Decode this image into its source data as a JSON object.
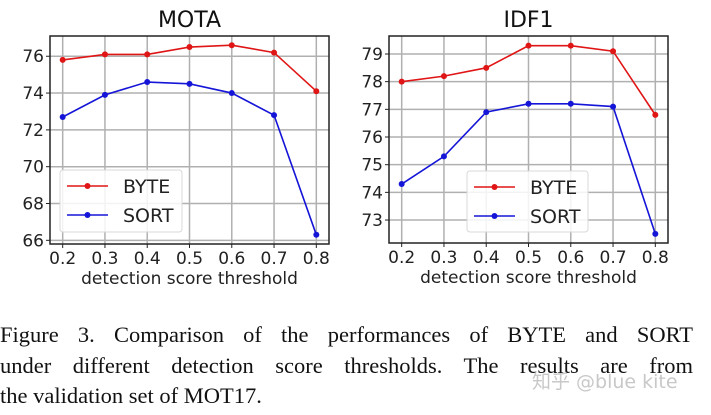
{
  "chart_data": [
    {
      "type": "line",
      "title": "MOTA",
      "xlabel": "detection score threshold",
      "ylabel": "",
      "x": [
        0.2,
        0.3,
        0.4,
        0.5,
        0.6,
        0.7,
        0.8
      ],
      "xticks": [
        "0.2",
        "0.3",
        "0.4",
        "0.5",
        "0.6",
        "0.7",
        "0.8"
      ],
      "yticks": [
        "66",
        "68",
        "70",
        "72",
        "74",
        "76"
      ],
      "ylim": [
        65.8,
        77.1
      ],
      "xlim": [
        0.17,
        0.83
      ],
      "grid": true,
      "legend": "lower-left",
      "series": [
        {
          "name": "BYTE",
          "color": "#e01515",
          "values": [
            75.8,
            76.1,
            76.1,
            76.5,
            76.6,
            76.2,
            74.1
          ]
        },
        {
          "name": "SORT",
          "color": "#1515d8",
          "values": [
            72.7,
            73.9,
            74.6,
            74.5,
            74.0,
            72.8,
            66.3
          ]
        }
      ]
    },
    {
      "type": "line",
      "title": "IDF1",
      "xlabel": "detection score threshold",
      "ylabel": "",
      "x": [
        0.2,
        0.3,
        0.4,
        0.5,
        0.6,
        0.7,
        0.8
      ],
      "xticks": [
        "0.2",
        "0.3",
        "0.4",
        "0.5",
        "0.6",
        "0.7",
        "0.8"
      ],
      "yticks": [
        "73",
        "74",
        "75",
        "76",
        "77",
        "78",
        "79"
      ],
      "ylim": [
        72.17,
        79.65
      ],
      "xlim": [
        0.17,
        0.83
      ],
      "grid": true,
      "legend": "lower-center",
      "series": [
        {
          "name": "BYTE",
          "color": "#e01515",
          "values": [
            78.0,
            78.2,
            78.5,
            79.3,
            79.3,
            79.1,
            76.8
          ]
        },
        {
          "name": "SORT",
          "color": "#1515d8",
          "values": [
            74.3,
            75.3,
            76.9,
            77.2,
            77.2,
            77.1,
            72.5
          ]
        }
      ]
    }
  ],
  "caption": {
    "lines": [
      "Figure 3.  Comparison of the performances of BYTE and SORT",
      "under different detection score thresholds.  The results are from",
      "the validation set of MOT17."
    ]
  },
  "watermark": "知乎 @blue kite"
}
